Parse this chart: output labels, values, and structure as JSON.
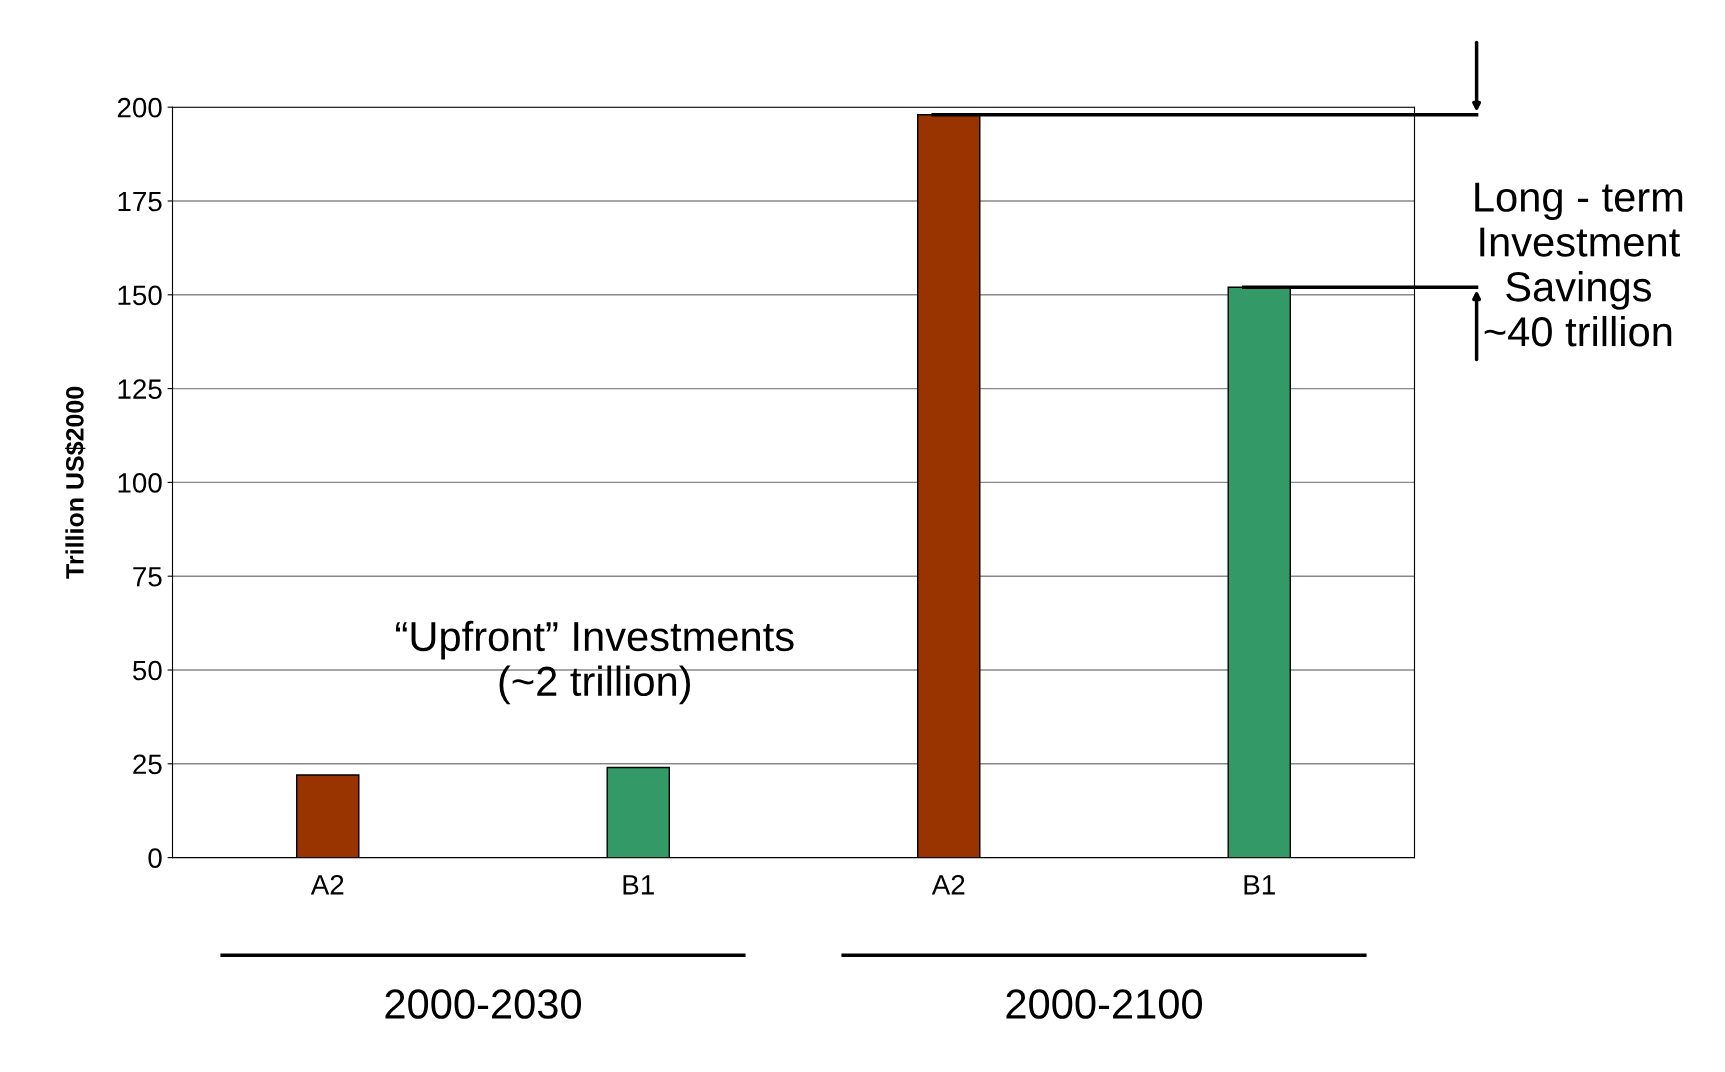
{
  "chart_data": {
    "type": "bar",
    "categories": [
      "A2",
      "B1",
      "A2",
      "B1"
    ],
    "values": [
      22,
      24,
      198,
      152
    ],
    "colors": [
      "#993300",
      "#339966",
      "#993300",
      "#339966"
    ],
    "ylabel": "Trillion US$2000",
    "ylim": [
      0,
      200
    ],
    "yticks": [
      0,
      25,
      50,
      75,
      100,
      125,
      150,
      175,
      200
    ],
    "grid": "y",
    "ref_lines": [
      {
        "axis": "y",
        "value": 198
      },
      {
        "axis": "y",
        "value": 152
      }
    ],
    "annotations": [
      "“Upfront” Investments\n(~2 trillion)",
      "Long - term\nInvestment\nSavings\n~40 trillion",
      "2000-2030",
      "2000-2100"
    ]
  }
}
